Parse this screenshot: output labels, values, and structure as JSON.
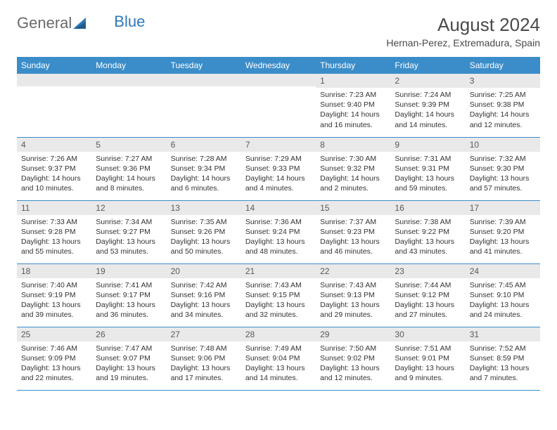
{
  "brand": {
    "part1": "General",
    "part2": "Blue"
  },
  "title": "August 2024",
  "location": "Hernan-Perez, Extremadura, Spain",
  "colors": {
    "header_bg": "#3b8dc9",
    "header_text": "#ffffff",
    "daynum_bg": "#e9e9e9",
    "border": "#3b8dc9",
    "brand_gray": "#6a6a6a",
    "brand_blue": "#2f78b7"
  },
  "weekdays": [
    "Sunday",
    "Monday",
    "Tuesday",
    "Wednesday",
    "Thursday",
    "Friday",
    "Saturday"
  ],
  "weeks": [
    [
      {
        "n": "",
        "sr": "",
        "ss": "",
        "dl": ""
      },
      {
        "n": "",
        "sr": "",
        "ss": "",
        "dl": ""
      },
      {
        "n": "",
        "sr": "",
        "ss": "",
        "dl": ""
      },
      {
        "n": "",
        "sr": "",
        "ss": "",
        "dl": ""
      },
      {
        "n": "1",
        "sr": "Sunrise: 7:23 AM",
        "ss": "Sunset: 9:40 PM",
        "dl": "Daylight: 14 hours and 16 minutes."
      },
      {
        "n": "2",
        "sr": "Sunrise: 7:24 AM",
        "ss": "Sunset: 9:39 PM",
        "dl": "Daylight: 14 hours and 14 minutes."
      },
      {
        "n": "3",
        "sr": "Sunrise: 7:25 AM",
        "ss": "Sunset: 9:38 PM",
        "dl": "Daylight: 14 hours and 12 minutes."
      }
    ],
    [
      {
        "n": "4",
        "sr": "Sunrise: 7:26 AM",
        "ss": "Sunset: 9:37 PM",
        "dl": "Daylight: 14 hours and 10 minutes."
      },
      {
        "n": "5",
        "sr": "Sunrise: 7:27 AM",
        "ss": "Sunset: 9:36 PM",
        "dl": "Daylight: 14 hours and 8 minutes."
      },
      {
        "n": "6",
        "sr": "Sunrise: 7:28 AM",
        "ss": "Sunset: 9:34 PM",
        "dl": "Daylight: 14 hours and 6 minutes."
      },
      {
        "n": "7",
        "sr": "Sunrise: 7:29 AM",
        "ss": "Sunset: 9:33 PM",
        "dl": "Daylight: 14 hours and 4 minutes."
      },
      {
        "n": "8",
        "sr": "Sunrise: 7:30 AM",
        "ss": "Sunset: 9:32 PM",
        "dl": "Daylight: 14 hours and 2 minutes."
      },
      {
        "n": "9",
        "sr": "Sunrise: 7:31 AM",
        "ss": "Sunset: 9:31 PM",
        "dl": "Daylight: 13 hours and 59 minutes."
      },
      {
        "n": "10",
        "sr": "Sunrise: 7:32 AM",
        "ss": "Sunset: 9:30 PM",
        "dl": "Daylight: 13 hours and 57 minutes."
      }
    ],
    [
      {
        "n": "11",
        "sr": "Sunrise: 7:33 AM",
        "ss": "Sunset: 9:28 PM",
        "dl": "Daylight: 13 hours and 55 minutes."
      },
      {
        "n": "12",
        "sr": "Sunrise: 7:34 AM",
        "ss": "Sunset: 9:27 PM",
        "dl": "Daylight: 13 hours and 53 minutes."
      },
      {
        "n": "13",
        "sr": "Sunrise: 7:35 AM",
        "ss": "Sunset: 9:26 PM",
        "dl": "Daylight: 13 hours and 50 minutes."
      },
      {
        "n": "14",
        "sr": "Sunrise: 7:36 AM",
        "ss": "Sunset: 9:24 PM",
        "dl": "Daylight: 13 hours and 48 minutes."
      },
      {
        "n": "15",
        "sr": "Sunrise: 7:37 AM",
        "ss": "Sunset: 9:23 PM",
        "dl": "Daylight: 13 hours and 46 minutes."
      },
      {
        "n": "16",
        "sr": "Sunrise: 7:38 AM",
        "ss": "Sunset: 9:22 PM",
        "dl": "Daylight: 13 hours and 43 minutes."
      },
      {
        "n": "17",
        "sr": "Sunrise: 7:39 AM",
        "ss": "Sunset: 9:20 PM",
        "dl": "Daylight: 13 hours and 41 minutes."
      }
    ],
    [
      {
        "n": "18",
        "sr": "Sunrise: 7:40 AM",
        "ss": "Sunset: 9:19 PM",
        "dl": "Daylight: 13 hours and 39 minutes."
      },
      {
        "n": "19",
        "sr": "Sunrise: 7:41 AM",
        "ss": "Sunset: 9:17 PM",
        "dl": "Daylight: 13 hours and 36 minutes."
      },
      {
        "n": "20",
        "sr": "Sunrise: 7:42 AM",
        "ss": "Sunset: 9:16 PM",
        "dl": "Daylight: 13 hours and 34 minutes."
      },
      {
        "n": "21",
        "sr": "Sunrise: 7:43 AM",
        "ss": "Sunset: 9:15 PM",
        "dl": "Daylight: 13 hours and 32 minutes."
      },
      {
        "n": "22",
        "sr": "Sunrise: 7:43 AM",
        "ss": "Sunset: 9:13 PM",
        "dl": "Daylight: 13 hours and 29 minutes."
      },
      {
        "n": "23",
        "sr": "Sunrise: 7:44 AM",
        "ss": "Sunset: 9:12 PM",
        "dl": "Daylight: 13 hours and 27 minutes."
      },
      {
        "n": "24",
        "sr": "Sunrise: 7:45 AM",
        "ss": "Sunset: 9:10 PM",
        "dl": "Daylight: 13 hours and 24 minutes."
      }
    ],
    [
      {
        "n": "25",
        "sr": "Sunrise: 7:46 AM",
        "ss": "Sunset: 9:09 PM",
        "dl": "Daylight: 13 hours and 22 minutes."
      },
      {
        "n": "26",
        "sr": "Sunrise: 7:47 AM",
        "ss": "Sunset: 9:07 PM",
        "dl": "Daylight: 13 hours and 19 minutes."
      },
      {
        "n": "27",
        "sr": "Sunrise: 7:48 AM",
        "ss": "Sunset: 9:06 PM",
        "dl": "Daylight: 13 hours and 17 minutes."
      },
      {
        "n": "28",
        "sr": "Sunrise: 7:49 AM",
        "ss": "Sunset: 9:04 PM",
        "dl": "Daylight: 13 hours and 14 minutes."
      },
      {
        "n": "29",
        "sr": "Sunrise: 7:50 AM",
        "ss": "Sunset: 9:02 PM",
        "dl": "Daylight: 13 hours and 12 minutes."
      },
      {
        "n": "30",
        "sr": "Sunrise: 7:51 AM",
        "ss": "Sunset: 9:01 PM",
        "dl": "Daylight: 13 hours and 9 minutes."
      },
      {
        "n": "31",
        "sr": "Sunrise: 7:52 AM",
        "ss": "Sunset: 8:59 PM",
        "dl": "Daylight: 13 hours and 7 minutes."
      }
    ]
  ]
}
